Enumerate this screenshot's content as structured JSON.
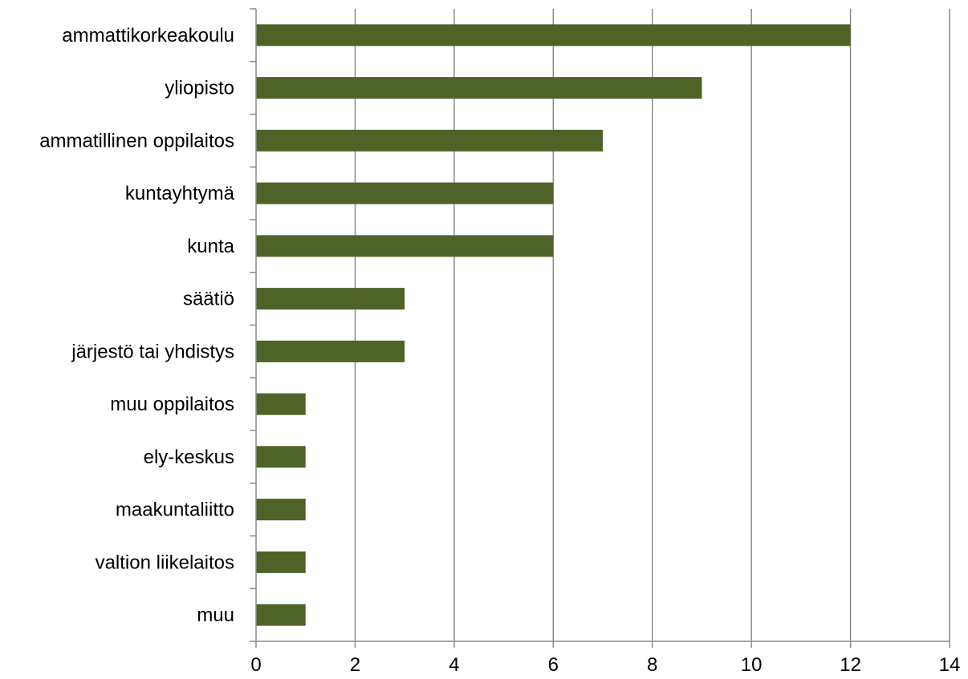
{
  "chart_data": {
    "type": "bar",
    "orientation": "horizontal",
    "categories": [
      "ammattikorkeakoulu",
      "yliopisto",
      "ammatillinen oppilaitos",
      "kuntayhtymä",
      "kunta",
      "säätiö",
      "järjestö tai yhdistys",
      "muu oppilaitos",
      "ely-keskus",
      "maakuntaliitto",
      "valtion liikelaitos",
      "muu"
    ],
    "values": [
      12,
      9,
      7,
      6,
      6,
      3,
      3,
      1,
      1,
      1,
      1,
      1
    ],
    "xlim": [
      0,
      14
    ],
    "xticks": [
      "0",
      "2",
      "4",
      "6",
      "8",
      "10",
      "12",
      "14"
    ],
    "grid": "vertical",
    "bar_color": "#4f6228",
    "title": "",
    "xlabel": "",
    "ylabel": ""
  }
}
